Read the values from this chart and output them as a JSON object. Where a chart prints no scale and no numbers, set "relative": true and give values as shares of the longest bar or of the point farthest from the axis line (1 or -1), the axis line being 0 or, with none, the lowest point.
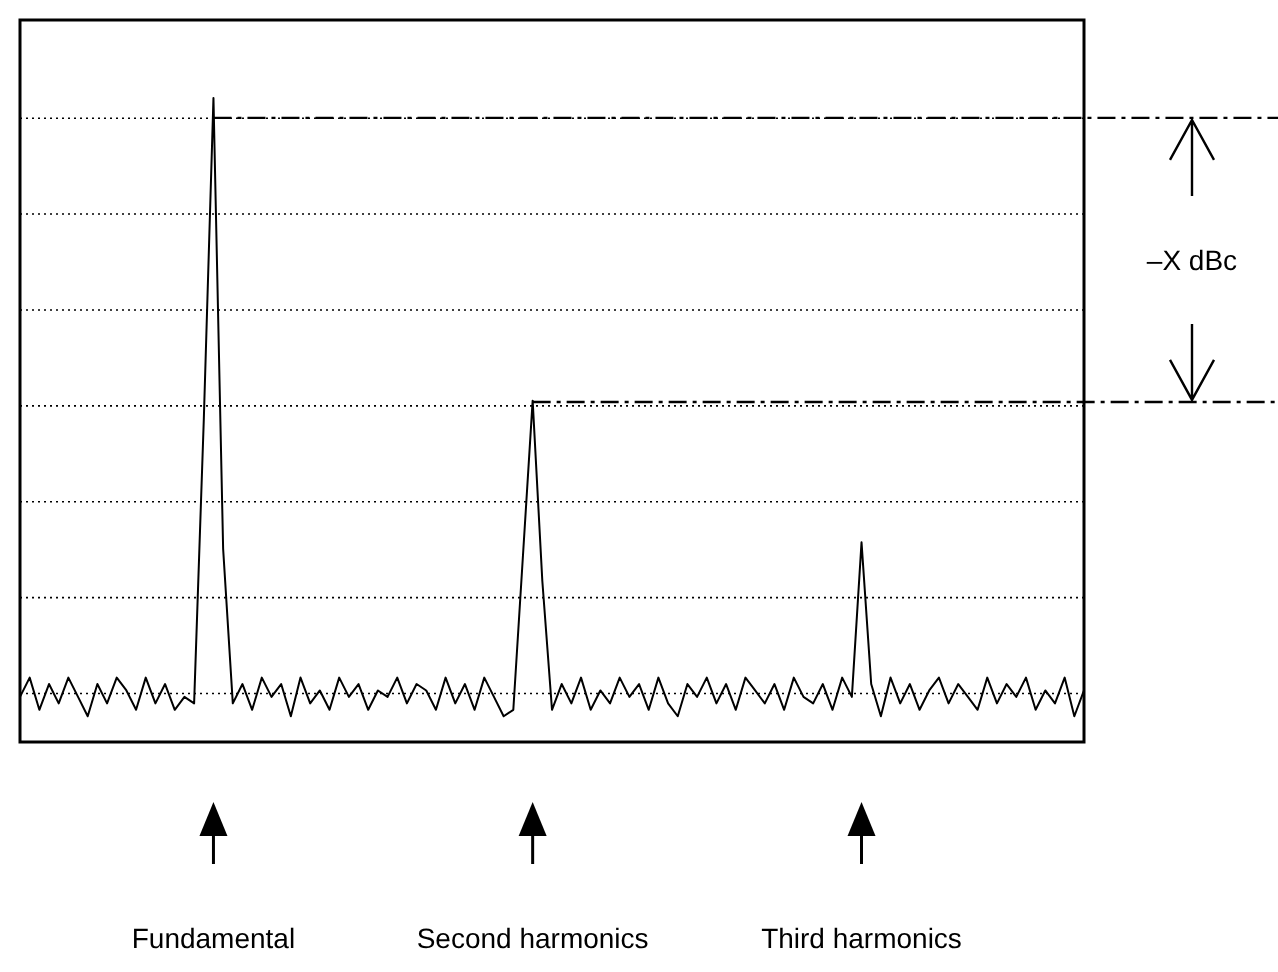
{
  "chart_data": {
    "type": "line",
    "relative": true,
    "grid": true,
    "line_style": "solid",
    "categories": [
      null,
      null,
      null,
      null,
      null,
      null,
      null,
      null,
      null,
      null,
      null,
      null,
      null,
      null,
      null,
      null,
      null,
      null,
      null,
      null,
      null,
      null,
      null,
      null,
      null,
      null,
      null,
      null,
      null,
      null,
      null,
      null,
      null,
      null,
      null,
      null,
      null,
      null,
      null,
      null,
      null,
      null,
      null,
      null,
      null,
      null,
      null,
      null,
      null,
      null,
      null,
      null,
      null,
      null,
      null,
      null,
      null,
      null,
      null,
      null,
      null,
      null,
      null,
      null,
      null,
      null,
      null,
      null,
      null,
      null,
      null,
      null,
      null,
      null,
      null,
      null,
      null,
      null,
      null,
      null,
      null,
      null,
      null,
      null,
      null,
      null,
      null,
      null,
      null,
      null,
      null,
      null,
      null,
      null,
      null,
      null,
      null,
      null,
      null,
      null,
      null,
      null,
      null,
      null,
      null,
      null,
      null,
      null,
      null,
      null,
      null
    ],
    "series": [
      {
        "color": "#000000",
        "values": [
          0.07,
          0.1,
          0.05,
          0.09,
          0.06,
          0.1,
          0.07,
          0.04,
          0.09,
          0.06,
          0.1,
          0.08,
          0.05,
          0.1,
          0.06,
          0.09,
          0.05,
          0.07,
          0.06,
          0.5,
          1,
          0.3,
          0.06,
          0.09,
          0.05,
          0.1,
          0.07,
          0.09,
          0.04,
          0.1,
          0.06,
          0.08,
          0.05,
          0.1,
          0.07,
          0.09,
          0.05,
          0.08,
          0.07,
          0.1,
          0.06,
          0.09,
          0.08,
          0.05,
          0.1,
          0.06,
          0.09,
          0.05,
          0.1,
          0.07,
          0.04,
          0.05,
          0.29,
          0.53,
          0.25,
          0.05,
          0.09,
          0.06,
          0.1,
          0.05,
          0.08,
          0.06,
          0.1,
          0.07,
          0.09,
          0.05,
          0.1,
          0.06,
          0.04,
          0.09,
          0.07,
          0.1,
          0.06,
          0.09,
          0.05,
          0.1,
          0.08,
          0.06,
          0.09,
          0.05,
          0.1,
          0.07,
          0.06,
          0.09,
          0.05,
          0.1,
          0.07,
          0.31,
          0.09,
          0.04,
          0.1,
          0.06,
          0.09,
          0.05,
          0.08,
          0.1,
          0.06,
          0.09,
          0.07,
          0.05,
          0.1,
          0.06,
          0.09,
          0.07,
          0.1,
          0.05,
          0.08,
          0.06,
          0.1,
          0.04,
          0.08
        ]
      }
    ],
    "ref_lines": [
      {
        "axis": "y",
        "value": 0.969,
        "line_style": "dashed",
        "color": "#000000"
      },
      {
        "axis": "y",
        "value": 0.528,
        "line_style": "dashed",
        "color": "#000000"
      }
    ],
    "annotations": [
      "–X dBc",
      "Fundamental",
      "Second harmonics",
      "Third harmonics"
    ]
  }
}
